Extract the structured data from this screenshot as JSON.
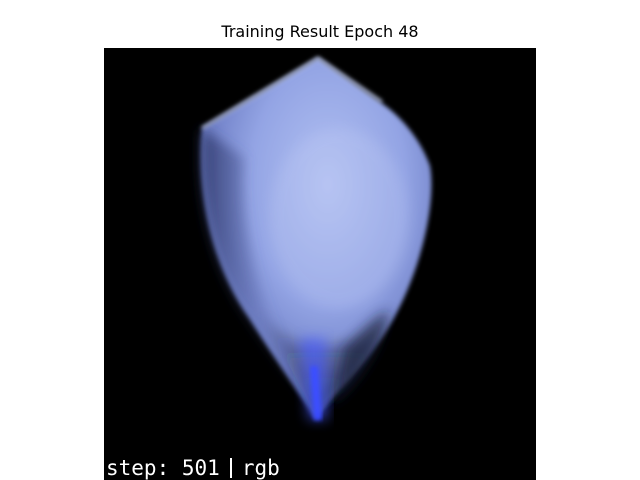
{
  "title": "Training Result Epoch 48",
  "overlay": {
    "step_prefix": "step:",
    "step_value": "501",
    "mode": "rgb"
  },
  "colors": {
    "background": "#000000",
    "object_light": "#aab8ee",
    "object_mid": "#7f90d8",
    "object_dark": "#3c4a8a",
    "core_blue": "#2a3cff"
  }
}
